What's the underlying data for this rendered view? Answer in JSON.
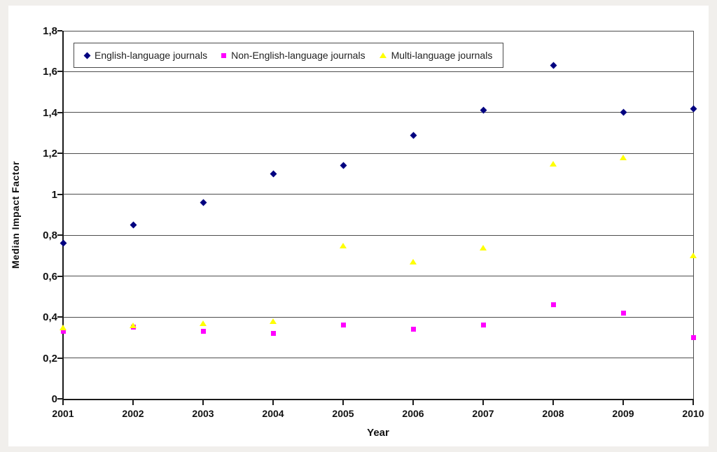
{
  "page": {
    "background_color": "#f1efec",
    "figure_background_color": "#ffffff",
    "gridline_color": "#4d4d4d",
    "axis_color": "#1a1a1a"
  },
  "chart_data": {
    "type": "scatter",
    "title": "",
    "xlabel": "Year",
    "ylabel": "Median Impact Factor",
    "x": [
      2001,
      2002,
      2003,
      2004,
      2005,
      2006,
      2007,
      2008,
      2009,
      2010
    ],
    "x_tick_labels": [
      "2001",
      "2002",
      "2003",
      "2004",
      "2005",
      "2006",
      "2007",
      "2008",
      "2009",
      "2010"
    ],
    "ylim": [
      0,
      1.8
    ],
    "ytick_step": 0.2,
    "y_tick_labels": [
      "0",
      "0,2",
      "0,4",
      "0,6",
      "0,8",
      "1",
      "1,2",
      "1,4",
      "1,6",
      "1,8"
    ],
    "grid": "horizontal",
    "legend_position": "top-left-inside",
    "series": [
      {
        "name": "English-language journals",
        "marker": "diamond",
        "color": "#000080",
        "values": [
          0.76,
          0.85,
          0.96,
          1.1,
          1.14,
          1.29,
          1.41,
          1.63,
          1.4,
          1.42
        ]
      },
      {
        "name": "Non-English-language journals",
        "marker": "square",
        "color": "#FF00FF",
        "values": [
          0.33,
          0.35,
          0.33,
          0.32,
          0.36,
          0.34,
          0.36,
          0.46,
          0.42,
          0.3
        ]
      },
      {
        "name": "Multi-language journals",
        "marker": "triangle",
        "color": "#FFFF00",
        "values": [
          0.35,
          0.36,
          0.37,
          0.38,
          0.75,
          0.67,
          0.74,
          1.15,
          1.18,
          0.7
        ]
      }
    ]
  }
}
